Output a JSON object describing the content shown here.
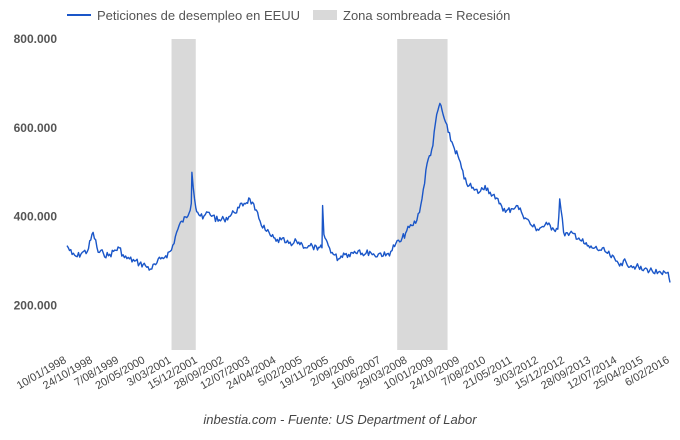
{
  "chart_data": {
    "type": "line",
    "title": "",
    "xlabel": "",
    "ylabel": "",
    "ylim": [
      100000,
      800000
    ],
    "yticks": [
      200000,
      400000,
      600000,
      800000
    ],
    "ytick_labels": [
      "200.000",
      "400.000",
      "600.000",
      "800.000"
    ],
    "grid": false,
    "legend_position": "top",
    "x_tick_labels": [
      "10/01/1998",
      "24/10/1998",
      "7/08/1999",
      "20/05/2000",
      "3/03/2001",
      "15/12/2001",
      "28/09/2002",
      "12/07/2003",
      "24/04/2004",
      "5/02/2005",
      "19/11/2005",
      "2/09/2006",
      "16/06/2007",
      "29/03/2008",
      "10/01/2009",
      "24/10/2009",
      "7/08/2010",
      "21/05/2011",
      "3/03/2012",
      "15/12/2012",
      "28/09/2013",
      "12/07/2014",
      "25/04/2015",
      "6/02/2016"
    ],
    "x_range": [
      "1998-01-10",
      "2016-02-27"
    ],
    "recessions": [
      {
        "start": "2001-03-03",
        "end": "2001-11-24"
      },
      {
        "start": "2007-12-15",
        "end": "2009-06-20"
      }
    ],
    "series": [
      {
        "name": "Peticiones de desempleo en EEUU",
        "color": "#1a56c8",
        "x": [
          "1998-01-10",
          "1998-03-07",
          "1998-05-02",
          "1998-06-27",
          "1998-08-22",
          "1998-10-24",
          "1998-12-19",
          "1999-02-13",
          "1999-04-10",
          "1999-06-05",
          "1999-08-07",
          "1999-10-02",
          "1999-11-27",
          "2000-01-22",
          "2000-03-18",
          "2000-05-20",
          "2000-07-15",
          "2000-09-09",
          "2000-11-04",
          "2000-12-30",
          "2001-03-03",
          "2001-04-28",
          "2001-06-23",
          "2001-08-18",
          "2001-10-06",
          "2001-10-13",
          "2001-11-24",
          "2001-12-15",
          "2002-02-09",
          "2002-04-06",
          "2002-06-01",
          "2002-07-27",
          "2002-09-28",
          "2002-11-23",
          "2003-01-18",
          "2003-03-15",
          "2003-05-10",
          "2003-07-12",
          "2003-09-06",
          "2003-11-01",
          "2003-12-27",
          "2004-02-21",
          "2004-04-24",
          "2004-06-19",
          "2004-08-14",
          "2004-10-09",
          "2004-12-04",
          "2005-02-05",
          "2005-04-02",
          "2005-05-28",
          "2005-07-23",
          "2005-09-10",
          "2005-09-17",
          "2005-10-01",
          "2005-11-19",
          "2006-01-14",
          "2006-03-11",
          "2006-05-06",
          "2006-07-01",
          "2006-09-02",
          "2006-10-28",
          "2006-12-23",
          "2007-02-17",
          "2007-04-14",
          "2007-06-16",
          "2007-08-11",
          "2007-10-06",
          "2007-12-01",
          "2008-01-26",
          "2008-03-29",
          "2008-05-24",
          "2008-07-19",
          "2008-09-13",
          "2008-11-08",
          "2009-01-10",
          "2009-02-07",
          "2009-03-07",
          "2009-03-28",
          "2009-05-02",
          "2009-06-27",
          "2009-08-22",
          "2009-10-24",
          "2009-12-19",
          "2010-02-13",
          "2010-04-10",
          "2010-06-05",
          "2010-08-07",
          "2010-10-02",
          "2010-11-27",
          "2011-01-22",
          "2011-03-19",
          "2011-05-21",
          "2011-07-16",
          "2011-09-10",
          "2011-11-05",
          "2011-12-31",
          "2012-03-03",
          "2012-04-28",
          "2012-06-23",
          "2012-08-18",
          "2012-10-13",
          "2012-11-03",
          "2012-12-15",
          "2013-02-09",
          "2013-04-06",
          "2013-06-01",
          "2013-07-27",
          "2013-09-28",
          "2013-11-23",
          "2014-01-18",
          "2014-03-15",
          "2014-05-10",
          "2014-07-12",
          "2014-09-06",
          "2014-11-01",
          "2014-12-27",
          "2015-02-21",
          "2015-04-25",
          "2015-06-20",
          "2015-08-15",
          "2015-10-10",
          "2015-12-05",
          "2016-02-06",
          "2016-02-27"
        ],
        "values": [
          335000,
          315000,
          310000,
          320000,
          322000,
          365000,
          320000,
          318000,
          312000,
          322000,
          330000,
          308000,
          305000,
          300000,
          295000,
          290000,
          282000,
          292000,
          305000,
          312000,
          325000,
          365000,
          390000,
          398000,
          430000,
          500000,
          420000,
          410000,
          395000,
          410000,
          403000,
          390000,
          395000,
          400000,
          410000,
          420000,
          430000,
          440000,
          415000,
          390000,
          370000,
          358000,
          345000,
          348000,
          342000,
          335000,
          345000,
          338000,
          330000,
          334000,
          325000,
          330000,
          425000,
          360000,
          335000,
          315000,
          305000,
          318000,
          315000,
          322000,
          325000,
          315000,
          322000,
          312000,
          318000,
          312000,
          322000,
          340000,
          345000,
          368000,
          380000,
          392000,
          440000,
          520000,
          560000,
          610000,
          640000,
          655000,
          630000,
          590000,
          560000,
          530000,
          485000,
          470000,
          460000,
          455000,
          470000,
          455000,
          440000,
          430000,
          410000,
          418000,
          425000,
          410000,
          395000,
          380000,
          372000,
          378000,
          382000,
          375000,
          372000,
          440000,
          365000,
          358000,
          362000,
          352000,
          340000,
          330000,
          330000,
          325000,
          322000,
          312000,
          300000,
          295000,
          298000,
          290000,
          288000,
          280000,
          282000,
          278000,
          272000,
          270000,
          275000,
          252000
        ]
      }
    ]
  },
  "legend": {
    "series_label": "Peticiones de desempleo en EEUU",
    "recession_label": "Zona sombreada = Recesión"
  },
  "footer": "inbestia.com - Fuente: US Department of Labor",
  "colors": {
    "line": "#1a56c8",
    "recession": "#d9d9d9",
    "text": "#555555"
  }
}
